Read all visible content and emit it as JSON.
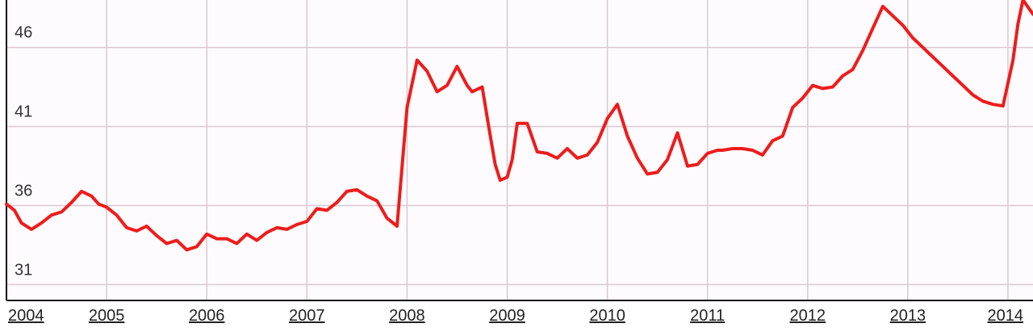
{
  "chart_data": {
    "type": "line",
    "title": "",
    "xlabel": "",
    "ylabel": "",
    "xlim": [
      2004.0,
      2014.25
    ],
    "ylim": [
      30.0,
      49.0
    ],
    "grid": true,
    "colors": {
      "line": "#ee1c1c",
      "grid": "#d9c9d3",
      "axis": "#111111",
      "background": "#fdfbfd"
    },
    "yticks": [
      31,
      36,
      41,
      46
    ],
    "xticks": [
      "2004",
      "2005",
      "2006",
      "2007",
      "2008",
      "2009",
      "2010",
      "2011",
      "2012",
      "2013",
      "2014"
    ],
    "series": [
      {
        "name": "",
        "x": [
          2004.0,
          2004.08,
          2004.15,
          2004.25,
          2004.35,
          2004.45,
          2004.55,
          2004.65,
          2004.75,
          2004.85,
          2004.92,
          2005.0,
          2005.1,
          2005.2,
          2005.3,
          2005.4,
          2005.5,
          2005.6,
          2005.7,
          2005.8,
          2005.9,
          2006.0,
          2006.1,
          2006.2,
          2006.3,
          2006.4,
          2006.5,
          2006.6,
          2006.7,
          2006.8,
          2006.9,
          2007.0,
          2007.1,
          2007.2,
          2007.3,
          2007.4,
          2007.5,
          2007.6,
          2007.7,
          2007.8,
          2007.9,
          2008.0,
          2008.1,
          2008.2,
          2008.3,
          2008.4,
          2008.5,
          2008.6,
          2008.65,
          2008.75,
          2008.82,
          2008.88,
          2008.93,
          2009.0,
          2009.05,
          2009.1,
          2009.2,
          2009.3,
          2009.4,
          2009.5,
          2009.6,
          2009.7,
          2009.8,
          2009.9,
          2010.0,
          2010.1,
          2010.2,
          2010.3,
          2010.4,
          2010.5,
          2010.6,
          2010.7,
          2010.8,
          2010.9,
          2011.0,
          2011.1,
          2011.15,
          2011.25,
          2011.35,
          2011.45,
          2011.55,
          2011.65,
          2011.75,
          2011.85,
          2011.95,
          2012.05,
          2012.15,
          2012.25,
          2012.35,
          2012.45,
          2012.55,
          2012.65,
          2012.75,
          2012.85,
          2012.95,
          2013.05,
          2013.15,
          2013.25,
          2013.35,
          2013.45,
          2013.55,
          2013.65,
          2013.75,
          2013.85,
          2013.95,
          2014.05,
          2014.1,
          2014.15,
          2014.25
        ],
        "y": [
          36.1,
          35.7,
          34.9,
          34.5,
          34.9,
          35.4,
          35.6,
          36.2,
          36.9,
          36.6,
          36.1,
          35.9,
          35.4,
          34.6,
          34.4,
          34.7,
          34.1,
          33.6,
          33.8,
          33.2,
          33.4,
          34.2,
          33.9,
          33.9,
          33.6,
          34.2,
          33.8,
          34.3,
          34.6,
          34.5,
          34.8,
          35.0,
          35.8,
          35.7,
          36.2,
          36.9,
          37.0,
          36.6,
          36.3,
          35.2,
          34.7,
          42.2,
          45.2,
          44.5,
          43.2,
          43.6,
          44.8,
          43.6,
          43.2,
          43.5,
          40.8,
          38.6,
          37.6,
          37.8,
          38.9,
          41.2,
          41.2,
          39.4,
          39.3,
          39.0,
          39.6,
          39.0,
          39.2,
          40.0,
          41.5,
          42.4,
          40.4,
          39.0,
          38.0,
          38.1,
          38.9,
          40.6,
          38.5,
          38.6,
          39.3,
          39.5,
          39.5,
          39.6,
          39.6,
          39.5,
          39.2,
          40.1,
          40.4,
          42.2,
          42.8,
          43.6,
          43.4,
          43.5,
          44.2,
          44.6,
          45.8,
          47.2,
          48.6,
          48.0,
          47.4,
          46.6,
          46.0,
          45.4,
          44.8,
          44.2,
          43.6,
          43.0,
          42.6,
          42.4,
          42.3,
          45.2,
          47.5,
          49.0,
          48.1
        ]
      }
    ]
  }
}
